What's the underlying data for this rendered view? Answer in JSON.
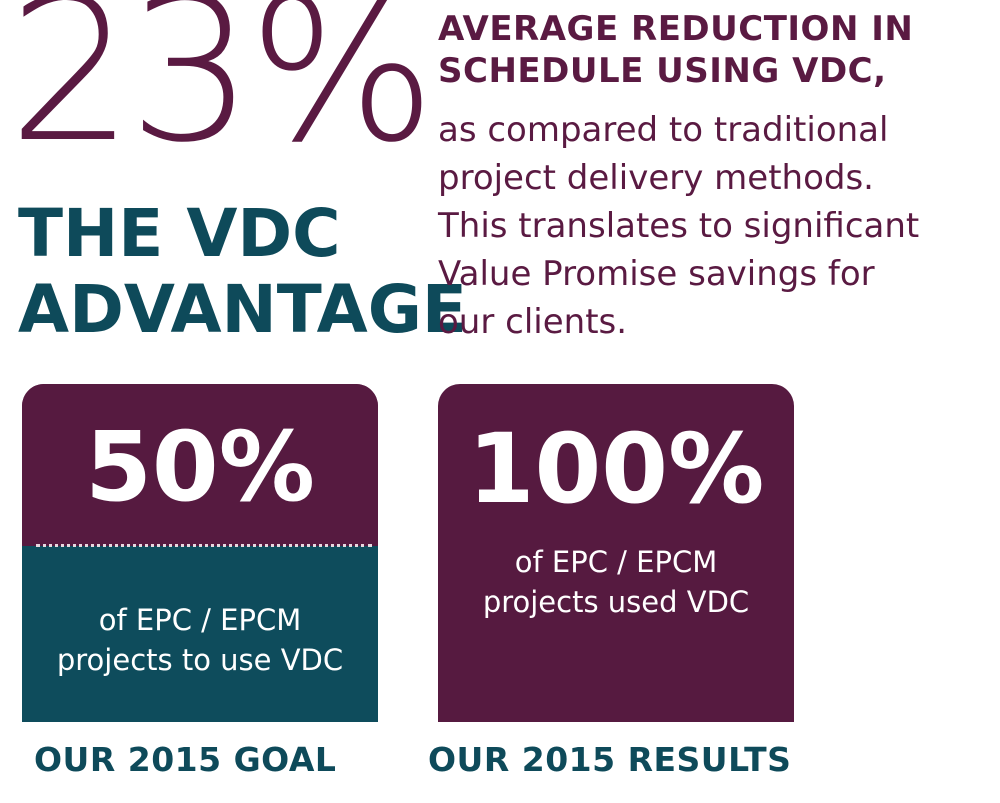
{
  "hero": {
    "stat": "23%",
    "title_line1": "THE VDC",
    "title_line2": "ADVANTAGE"
  },
  "summary": {
    "headline_line1": "AVERAGE REDUCTION IN",
    "headline_line2": "SCHEDULE USING VDC,",
    "desc_line1": "as compared to traditional",
    "desc_line2": "project delivery methods.",
    "desc_line3": "This translates to significant",
    "desc_line4": "Value Promise savings for",
    "desc_line5": "our clients."
  },
  "goal": {
    "value": "50%",
    "text_line1": "of EPC / EPCM",
    "text_line2": "projects to use VDC",
    "caption": "OUR 2015 GOAL",
    "progress_fraction": 0.5
  },
  "results": {
    "value": "100%",
    "text_line1": "of EPC / EPCM",
    "text_line2": "projects used VDC",
    "caption": "OUR 2015 RESULTS",
    "progress_fraction": 1.0
  },
  "colors": {
    "plum": "#561a40",
    "teal": "#0e4c5c",
    "white": "#ffffff"
  }
}
